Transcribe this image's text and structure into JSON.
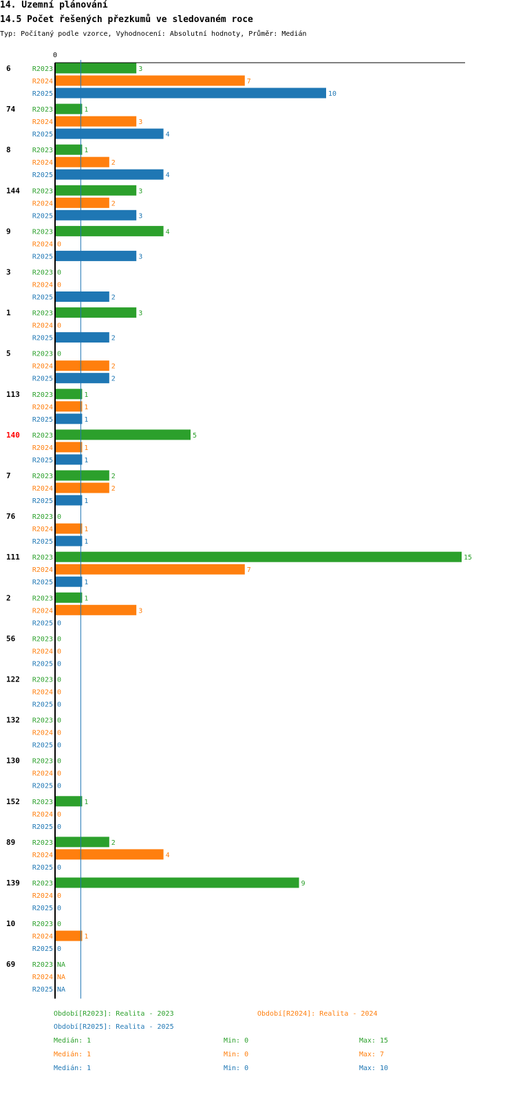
{
  "header": {
    "title": "14. Územní plánování",
    "subtitle": "14.5 Počet řešených přezkumů ve sledovaném roce",
    "type_line": "Typ: Počítaný podle vzorce, Vyhodnocení: Absolutní hodnoty, Průměr: Medián"
  },
  "colors": {
    "R2023": "#2ca02c",
    "R2024": "#ff7f0e",
    "R2025": "#1f77b4",
    "highlight": "#ff0000"
  },
  "chart_data": {
    "type": "bar",
    "orientation": "horizontal",
    "axis_zero_label": "0",
    "median_line_value": 1,
    "xlim": [
      0,
      15
    ],
    "categories": [
      "6",
      "74",
      "8",
      "144",
      "9",
      "3",
      "1",
      "5",
      "113",
      "140",
      "7",
      "76",
      "111",
      "2",
      "56",
      "122",
      "132",
      "130",
      "152",
      "89",
      "139",
      "10",
      "69"
    ],
    "highlight_category": "140",
    "series": [
      {
        "name": "R2023",
        "values": [
          3,
          1,
          1,
          3,
          4,
          0,
          3,
          0,
          1,
          5,
          2,
          0,
          15,
          1,
          0,
          0,
          0,
          0,
          1,
          2,
          9,
          0,
          "NA"
        ]
      },
      {
        "name": "R2024",
        "values": [
          7,
          3,
          2,
          2,
          0,
          0,
          0,
          2,
          1,
          1,
          2,
          1,
          7,
          3,
          0,
          0,
          0,
          0,
          0,
          4,
          0,
          1,
          "NA"
        ]
      },
      {
        "name": "R2025",
        "values": [
          10,
          4,
          4,
          3,
          3,
          2,
          2,
          2,
          1,
          1,
          1,
          1,
          1,
          0,
          0,
          0,
          0,
          0,
          0,
          0,
          0,
          0,
          "NA"
        ]
      }
    ]
  },
  "legend": {
    "periods": [
      {
        "series": "R2023",
        "text": "Období[R2023]: Realita - 2023"
      },
      {
        "series": "R2024",
        "text": "Období[R2024]: Realita - 2024"
      },
      {
        "series": "R2025",
        "text": "Období[R2025]: Realita - 2025"
      }
    ],
    "stats": [
      {
        "series": "R2023",
        "median": "Medián: 1",
        "min": "Min: 0",
        "max": "Max: 15"
      },
      {
        "series": "R2024",
        "median": "Medián: 1",
        "min": "Min: 0",
        "max": "Max: 7"
      },
      {
        "series": "R2025",
        "median": "Medián: 1",
        "min": "Min: 0",
        "max": "Max: 10"
      }
    ]
  }
}
